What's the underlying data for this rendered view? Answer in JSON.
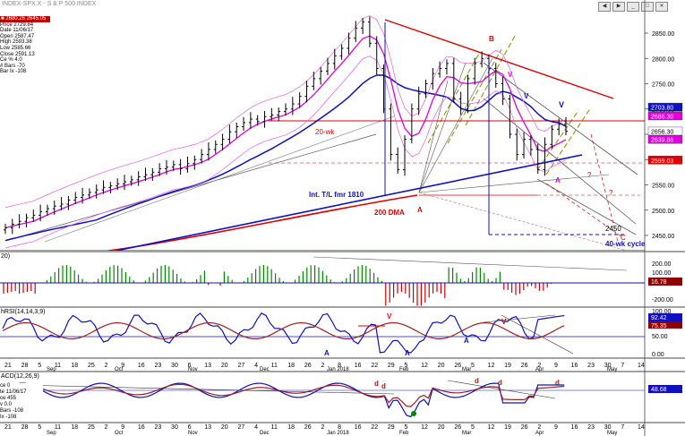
{
  "window": {
    "title": "INDEX-SPX.X - S & P 500 INDEX"
  },
  "price_box": {
    "header": "■ 2680.26  2645.05",
    "rows": [
      "Price  2729.84",
      "Date  11/06/17",
      "Open  2587.47",
      "High  2593.38",
      "Low  2585.66",
      "Close  2591.13",
      "Ce %  4.0",
      "# Bars -70",
      "Bar Ix -108"
    ]
  },
  "panels": {
    "ind1_title": "20)",
    "rsi_title": "hRSI(14,14,3,9)",
    "macd_title": "ACD(12,26,9)"
  },
  "macd_box": {
    "rows": [
      "ce  0",
      "te  11/06/17",
      "ce  455",
      "v  0.0",
      "Bars -108",
      "Ix -108"
    ]
  },
  "annotations": {
    "twenty_wk": "20-wk",
    "int_tl": "Int. T/L fmr 1810",
    "dma200": "200 DMA",
    "level_2450": "2450",
    "cycle40": "40-wk cycle",
    "A1": "A",
    "A2": "A",
    "B": "B",
    "V1": "V",
    "V2": "V",
    "V3": "V",
    "q1": "?",
    "q2": "?",
    "C": "C",
    "rsi_V1": "V",
    "rsi_V2": "V",
    "rsi_A1": "A",
    "rsi_A2": "A",
    "rsi_A3": "A",
    "macd_d1": "d",
    "macd_d2": "d",
    "macd_d3": "d",
    "macd_d4": "d",
    "macd_d5": "d"
  },
  "colors": {
    "price": "#000000",
    "ma20": "#e000e0",
    "ma200": "#dd0000",
    "ma50": "#1010c0",
    "resistance": "#dd0000",
    "hist_up": "#008800",
    "hist_down": "#cc0000"
  },
  "chart_data": {
    "type": "line",
    "price_axis": {
      "ticks": [
        2850,
        2800,
        2750,
        2700,
        2650,
        2600,
        2550,
        2500,
        2450
      ]
    },
    "price_labels": [
      {
        "value": 2703.8,
        "text": "2703.80",
        "bg": "#1010c0",
        "fg": "#ffffff"
      },
      {
        "value": 2686.3,
        "text": "2686.30",
        "bg": "#e000e0",
        "fg": "#ffffff"
      },
      {
        "value": 2656.3,
        "text": "2656.30",
        "bg": "#ffffff",
        "fg": "#000000"
      },
      {
        "value": 2639.86,
        "text": "2639.86",
        "bg": "#e000e0",
        "fg": "#ffffff"
      },
      {
        "value": 2599.03,
        "text": "2599.03",
        "bg": "#dd0000",
        "fg": "#ffffff"
      }
    ],
    "ind1_axis": {
      "ticks": [
        "200.00",
        "100.00",
        "-200.00"
      ],
      "value_label": "16.78"
    },
    "rsi_axis": {
      "ticks": [
        "100.00",
        "50.00",
        "0.00"
      ],
      "value_labels": [
        "92.42",
        "75.35"
      ]
    },
    "macd_axis": {
      "value_label": "48.68"
    },
    "date_ticks": [
      "21",
      "28",
      "5",
      "11",
      "18",
      "25",
      "2",
      "9",
      "16",
      "23",
      "30",
      "6",
      "13",
      "20",
      "27",
      "4",
      "11",
      "18",
      "26",
      "2",
      "8",
      "16",
      "22",
      "29",
      "5",
      "12",
      "20",
      "26",
      "5",
      "12",
      "19",
      "26",
      "2",
      "9",
      "16",
      "23",
      "30",
      "7",
      "14"
    ],
    "month_labels": [
      "Sep",
      "Oct",
      "Nov",
      "Dec",
      "Jan 2018",
      "Feb",
      "Mar",
      "Apr",
      "May"
    ],
    "closes": [
      2465,
      2472,
      2478,
      2485,
      2490,
      2497,
      2503,
      2508,
      2512,
      2520,
      2525,
      2530,
      2535,
      2540,
      2545,
      2548,
      2552,
      2556,
      2560,
      2566,
      2570,
      2575,
      2582,
      2585,
      2590,
      2582,
      2592,
      2600,
      2610,
      2620,
      2630,
      2640,
      2655,
      2665,
      2673,
      2680,
      2675,
      2685,
      2688,
      2695,
      2700,
      2710,
      2725,
      2745,
      2760,
      2775,
      2790,
      2805,
      2820,
      2840,
      2860,
      2872,
      2830,
      2780,
      2700,
      2610,
      2580,
      2640,
      2700,
      2730,
      2750,
      2770,
      2780,
      2790,
      2720,
      2700,
      2760,
      2790,
      2800,
      2780,
      2750,
      2720,
      2650,
      2610,
      2640,
      2620,
      2580,
      2630,
      2660,
      2670,
      2656
    ]
  }
}
